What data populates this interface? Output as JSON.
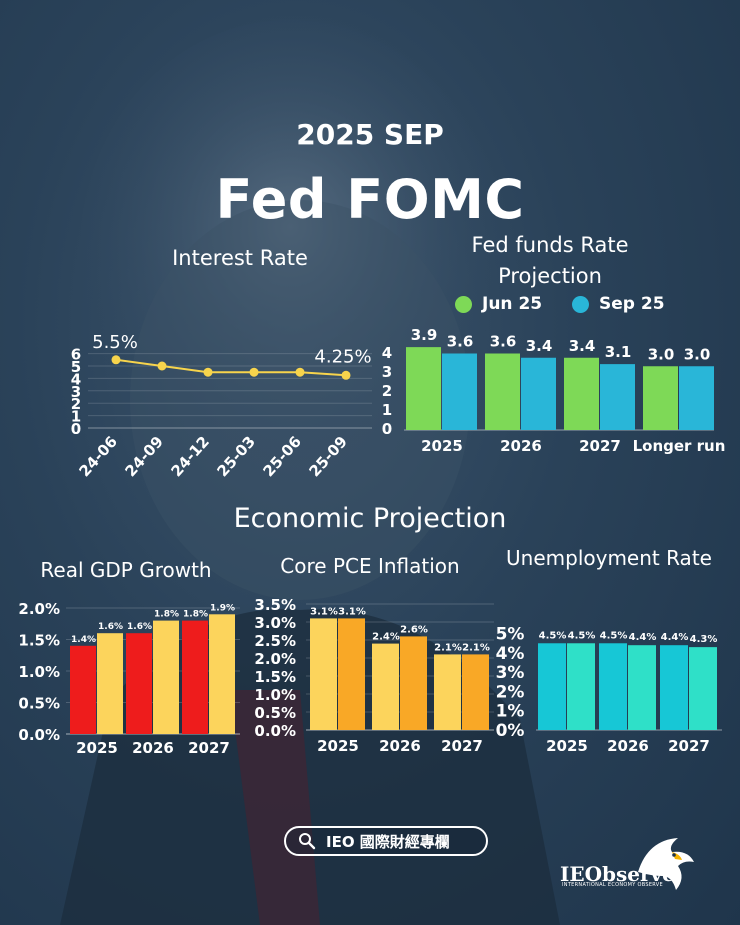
{
  "header": {
    "date": "2025 SEP",
    "title": "Fed FOMC"
  },
  "colors": {
    "background": "#2a4259",
    "line": "#f7d44c",
    "jun": "#7ed957",
    "sep": "#29b6d8",
    "gdp_2025": "#ee1c1c",
    "gdp_2026": "#fcd45c",
    "pce_a": "#fcd45c",
    "pce_b": "#f9a826",
    "unemp_a": "#17c7d6",
    "unemp_b": "#2fe0c8"
  },
  "legend": {
    "jun": "Jun 25",
    "sep": "Sep 25"
  },
  "sections": {
    "economic_projection": "Economic Projection"
  },
  "footer": {
    "search_label": "IEO 國際財經專欄",
    "logo_name": "IEObserve",
    "logo_tagline": "INTERNATIONAL ECONOMY OBSERVE",
    "icons": [
      "search-icon",
      "eagle-logo-icon"
    ]
  },
  "chart_data": [
    {
      "id": "interest",
      "type": "line",
      "title": "Interest Rate",
      "categories": [
        "24-06",
        "24-09",
        "24-12",
        "25-03",
        "25-06",
        "25-09"
      ],
      "values": [
        5.5,
        5.0,
        4.5,
        4.5,
        4.5,
        4.25
      ],
      "annotations": [
        "5.5%",
        "4.25%"
      ],
      "left_ticks": [
        "0",
        "1",
        "2",
        "3",
        "4",
        "5",
        "6"
      ],
      "right_ticks": [
        "0",
        "1",
        "2",
        "3",
        "4"
      ],
      "ylim": [
        0,
        6
      ],
      "grid": true
    },
    {
      "id": "fedfunds",
      "type": "bar",
      "title": "Fed funds Rate Projection",
      "categories": [
        "2025",
        "2026",
        "2027",
        "Longer run"
      ],
      "series": [
        {
          "name": "Jun 25",
          "values": [
            3.9,
            3.6,
            3.4,
            3.0
          ],
          "labels": [
            "3.9",
            "3.6",
            "3.4",
            "3.0"
          ]
        },
        {
          "name": "Sep 25",
          "values": [
            3.6,
            3.4,
            3.1,
            3.0
          ],
          "labels": [
            "3.6",
            "3.4",
            "3.1",
            "3.0"
          ]
        }
      ],
      "ylim": [
        0,
        4
      ],
      "grid": false
    },
    {
      "id": "gdp",
      "type": "bar",
      "title": "Real GDP Growth",
      "categories": [
        "2025",
        "2026",
        "2027"
      ],
      "series": [
        {
          "values": [
            1.4,
            1.6,
            1.8
          ],
          "labels": [
            "1.4%",
            "1.6%",
            "1.8%"
          ]
        },
        {
          "values": [
            1.6,
            1.8,
            1.9
          ],
          "labels": [
            "1.6%",
            "1.8%",
            "1.9%"
          ]
        }
      ],
      "ticks": [
        "0.0%",
        "0.5%",
        "1.0%",
        "1.5%",
        "2.0%"
      ],
      "ylim": [
        0,
        2.0
      ],
      "grid": true
    },
    {
      "id": "pce",
      "type": "bar",
      "title": "Core PCE Inflation",
      "categories": [
        "2025",
        "2026",
        "2027"
      ],
      "series": [
        {
          "values": [
            3.1,
            2.4,
            2.1
          ],
          "labels": [
            "3.1%",
            "2.4%",
            "2.1%"
          ]
        },
        {
          "values": [
            3.1,
            2.6,
            2.1
          ],
          "labels": [
            "3.1%",
            "2.6%",
            "2.1%"
          ]
        }
      ],
      "ticks": [
        "0.0%",
        "0.5%",
        "1.0%",
        "1.5%",
        "2.0%",
        "2.5%",
        "3.0%",
        "3.5%"
      ],
      "ylim": [
        0,
        3.5
      ],
      "grid": true
    },
    {
      "id": "unemp",
      "type": "bar",
      "title": "Unemployment Rate",
      "categories": [
        "2025",
        "2026",
        "2027"
      ],
      "series": [
        {
          "values": [
            4.5,
            4.5,
            4.4
          ],
          "labels": [
            "4.5%",
            "4.5%",
            "4.4%"
          ]
        },
        {
          "values": [
            4.5,
            4.4,
            4.3
          ],
          "labels": [
            "4.5%",
            "4.4%",
            "4.3%"
          ]
        }
      ],
      "ticks": [
        "0%",
        "1%",
        "2%",
        "3%",
        "4%",
        "5%"
      ],
      "ylim": [
        0,
        5.5
      ],
      "grid": false
    }
  ]
}
